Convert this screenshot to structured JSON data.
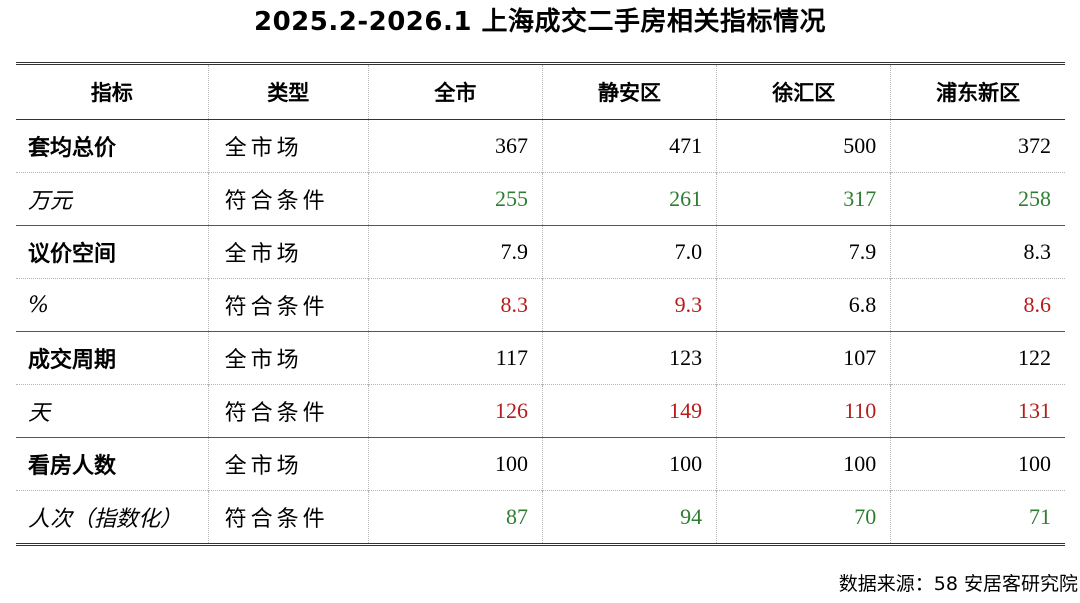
{
  "title": "2025.2-2026.1 上海成交二手房相关指标情况",
  "headers": {
    "metric": "指标",
    "type": "类型",
    "cols": [
      "全市",
      "静安区",
      "徐汇区",
      "浦东新区"
    ]
  },
  "rows": [
    {
      "metric": "套均总价",
      "unit": "万元",
      "market": {
        "type": "全市场",
        "values": [
          "367",
          "471",
          "500",
          "372"
        ]
      },
      "eligible": {
        "type": "符合条件",
        "values": [
          "255",
          "261",
          "317",
          "258"
        ]
      }
    },
    {
      "metric": "议价空间",
      "unit": "%",
      "market": {
        "type": "全市场",
        "values": [
          "7.9",
          "7.0",
          "7.9",
          "8.3"
        ]
      },
      "eligible": {
        "type": "符合条件",
        "values": [
          "8.3",
          "9.3",
          "6.8",
          "8.6"
        ]
      }
    },
    {
      "metric": "成交周期",
      "unit": "天",
      "market": {
        "type": "全市场",
        "values": [
          "117",
          "123",
          "107",
          "122"
        ]
      },
      "eligible": {
        "type": "符合条件",
        "values": [
          "126",
          "149",
          "110",
          "131"
        ]
      }
    },
    {
      "metric": "看房人数",
      "unit": "人次（指数化）",
      "market": {
        "type": "全市场",
        "values": [
          "100",
          "100",
          "100",
          "100"
        ]
      },
      "eligible": {
        "type": "符合条件",
        "values": [
          "87",
          "94",
          "70",
          "71"
        ]
      }
    }
  ],
  "highlight": {
    "green": "#2e7d32",
    "red": "#b71c1c",
    "eligible_colors": [
      [
        "green",
        "green",
        "green",
        "green"
      ],
      [
        "red",
        "red",
        "black",
        "red"
      ],
      [
        "red",
        "red",
        "red",
        "red"
      ],
      [
        "green",
        "green",
        "green",
        "green"
      ]
    ]
  },
  "source": "数据来源：58 安居客研究院"
}
